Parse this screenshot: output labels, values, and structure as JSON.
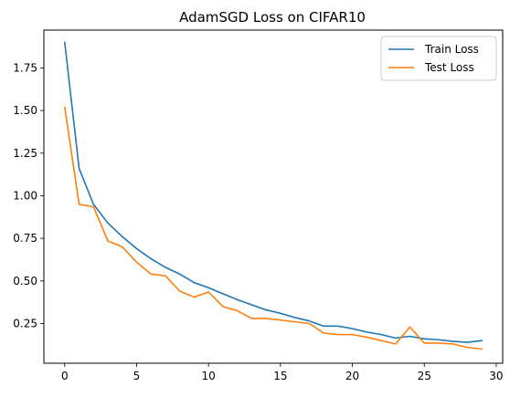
{
  "chart_data": {
    "type": "line",
    "title": "AdamSGD Loss on CIFAR10",
    "xlabel": "",
    "ylabel": "",
    "xlim": [
      -1.45,
      30.45
    ],
    "ylim": [
      0.017,
      1.972
    ],
    "xticks": [
      0,
      5,
      10,
      15,
      20,
      25,
      30
    ],
    "xtick_labels": [
      "0",
      "5",
      "10",
      "15",
      "20",
      "25",
      "30"
    ],
    "yticks": [
      0.25,
      0.5,
      0.75,
      1.0,
      1.25,
      1.5,
      1.75
    ],
    "ytick_labels": [
      "0.25",
      "0.50",
      "0.75",
      "1.00",
      "1.25",
      "1.50",
      "1.75"
    ],
    "grid": false,
    "legend_position": "top-right",
    "x": [
      0,
      1,
      2,
      3,
      4,
      5,
      6,
      7,
      8,
      9,
      10,
      11,
      12,
      13,
      14,
      15,
      16,
      17,
      18,
      19,
      20,
      21,
      22,
      23,
      24,
      25,
      26,
      27,
      28,
      29
    ],
    "series": [
      {
        "name": "Train Loss",
        "color": "#1f77b4",
        "values": [
          1.9,
          1.16,
          0.95,
          0.84,
          0.76,
          0.69,
          0.63,
          0.58,
          0.54,
          0.49,
          0.46,
          0.425,
          0.39,
          0.36,
          0.33,
          0.31,
          0.285,
          0.265,
          0.235,
          0.235,
          0.22,
          0.2,
          0.185,
          0.165,
          0.175,
          0.16,
          0.155,
          0.145,
          0.14,
          0.15
        ]
      },
      {
        "name": "Test Loss",
        "color": "#ff7f0e",
        "values": [
          1.52,
          0.95,
          0.935,
          0.735,
          0.7,
          0.61,
          0.54,
          0.53,
          0.44,
          0.405,
          0.435,
          0.35,
          0.325,
          0.28,
          0.28,
          0.27,
          0.26,
          0.25,
          0.195,
          0.185,
          0.185,
          0.17,
          0.15,
          0.13,
          0.23,
          0.135,
          0.135,
          0.13,
          0.11,
          0.1
        ]
      }
    ]
  }
}
